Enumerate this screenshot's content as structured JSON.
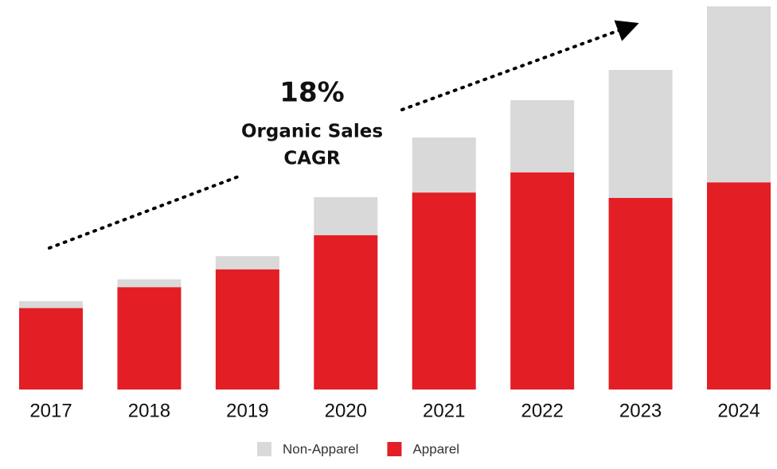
{
  "chart_data": {
    "type": "stacked_bar",
    "categories": [
      "2017",
      "2018",
      "2019",
      "2020",
      "2021",
      "2022",
      "2023",
      "2024"
    ],
    "series": [
      {
        "name": "Non-Apparel",
        "color": "#d9d9d9",
        "values": [
          9,
          10,
          17,
          49,
          71,
          93,
          165,
          227
        ]
      },
      {
        "name": "Apparel",
        "color": "#e31e24",
        "values": [
          105,
          132,
          155,
          199,
          254,
          280,
          247,
          267
        ]
      }
    ],
    "ylim": [
      0,
      494
    ],
    "annotations": [
      "18%",
      "Organic Sales",
      "CAGR"
    ]
  }
}
